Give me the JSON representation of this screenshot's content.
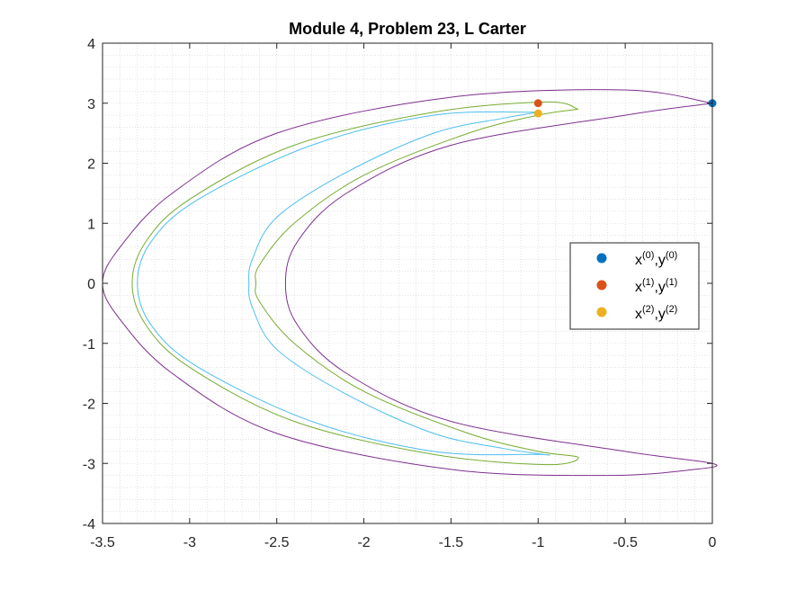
{
  "chart_data": {
    "type": "line",
    "title": "Module 4, Problem 23, L Carter",
    "xlabel": "",
    "ylabel": "",
    "xlim": [
      -3.5,
      0
    ],
    "ylim": [
      -4,
      4
    ],
    "x_ticks": [
      -3.5,
      -3,
      -2.5,
      -2,
      -1.5,
      -1,
      -0.5,
      0
    ],
    "y_ticks": [
      -4,
      -3,
      -2,
      -1,
      0,
      1,
      2,
      3,
      4
    ],
    "x_tick_labels": [
      "-3.5",
      "-3",
      "-2.5",
      "-2",
      "-1.5",
      "-1",
      "-0.5",
      "0"
    ],
    "y_tick_labels": [
      "-4",
      "-3",
      "-2",
      "-1",
      "0",
      "1",
      "2",
      "3",
      "4"
    ],
    "grid": "minor dotted",
    "legend_position": "right",
    "curves": [
      {
        "color": "#7E2F8E",
        "points": [
          [
            0,
            3
          ],
          [
            -0.5,
            3.22
          ],
          [
            -1.5,
            3.1
          ],
          [
            -2.5,
            2.5
          ],
          [
            -3.1,
            1.5
          ],
          [
            -3.4,
            0.6
          ],
          [
            -3.5,
            0
          ],
          [
            -3.4,
            -0.6
          ],
          [
            -3.1,
            -1.5
          ],
          [
            -2.5,
            -2.5
          ],
          [
            -1.5,
            -3.1
          ],
          [
            -0.6,
            -3.2
          ],
          [
            -0.1,
            -3.1
          ],
          [
            0,
            -3
          ],
          [
            -0.5,
            -2.8
          ],
          [
            -1.5,
            -2.3
          ],
          [
            -2.1,
            -1.5
          ],
          [
            -2.38,
            -0.7
          ],
          [
            -2.45,
            0
          ],
          [
            -2.38,
            0.7
          ],
          [
            -2.1,
            1.5
          ],
          [
            -1.5,
            2.3
          ],
          [
            -0.5,
            2.8
          ],
          [
            0,
            3
          ]
        ]
      },
      {
        "color": "#77AC30",
        "points": [
          [
            -0.77,
            2.9
          ],
          [
            -0.95,
            3.02
          ],
          [
            -1.6,
            2.85
          ],
          [
            -2.4,
            2.3
          ],
          [
            -3.0,
            1.4
          ],
          [
            -3.25,
            0.7
          ],
          [
            -3.33,
            0
          ],
          [
            -3.25,
            -0.7
          ],
          [
            -3.0,
            -1.4
          ],
          [
            -2.4,
            -2.3
          ],
          [
            -1.6,
            -2.85
          ],
          [
            -0.95,
            -3.02
          ],
          [
            -0.77,
            -2.9
          ],
          [
            -1.0,
            -2.8
          ],
          [
            -1.4,
            -2.5
          ],
          [
            -2.0,
            -1.8
          ],
          [
            -2.4,
            -1.0
          ],
          [
            -2.6,
            -0.3
          ],
          [
            -2.62,
            0
          ],
          [
            -2.6,
            0.3
          ],
          [
            -2.4,
            1.0
          ],
          [
            -2.0,
            1.8
          ],
          [
            -1.4,
            2.5
          ],
          [
            -1.0,
            2.8
          ],
          [
            -0.77,
            2.9
          ]
        ]
      },
      {
        "color": "#4DBEEE",
        "points": [
          [
            -1.0,
            2.85
          ],
          [
            -1.6,
            2.8
          ],
          [
            -2.3,
            2.3
          ],
          [
            -2.95,
            1.4
          ],
          [
            -3.22,
            0.7
          ],
          [
            -3.3,
            0
          ],
          [
            -3.22,
            -0.7
          ],
          [
            -2.95,
            -1.4
          ],
          [
            -2.3,
            -2.3
          ],
          [
            -1.6,
            -2.8
          ],
          [
            -1.0,
            -2.85
          ],
          [
            -0.97,
            -2.85
          ],
          [
            -1.2,
            -2.75
          ],
          [
            -1.6,
            -2.5
          ],
          [
            -2.1,
            -1.85
          ],
          [
            -2.5,
            -1.1
          ],
          [
            -2.64,
            -0.4
          ],
          [
            -2.66,
            0
          ],
          [
            -2.64,
            0.4
          ],
          [
            -2.5,
            1.1
          ],
          [
            -2.1,
            1.85
          ],
          [
            -1.6,
            2.5
          ],
          [
            -1.2,
            2.75
          ],
          [
            -1.0,
            2.85
          ]
        ]
      }
    ],
    "series": [
      {
        "label": "x(0),y(0)",
        "base_x": "x",
        "sup_x": "(0)",
        "base_y": "y",
        "sup_y": "(0)",
        "color": "#0072BD",
        "x": 0,
        "y": 3
      },
      {
        "label": "x(1),y(1)",
        "base_x": "x",
        "sup_x": "(1)",
        "base_y": "y",
        "sup_y": "(1)",
        "color": "#D95319",
        "x": -1,
        "y": 3
      },
      {
        "label": "x(2),y(2)",
        "base_x": "x",
        "sup_x": "(2)",
        "base_y": "y",
        "sup_y": "(2)",
        "color": "#EDB120",
        "x": -1,
        "y": 2.83
      }
    ]
  }
}
